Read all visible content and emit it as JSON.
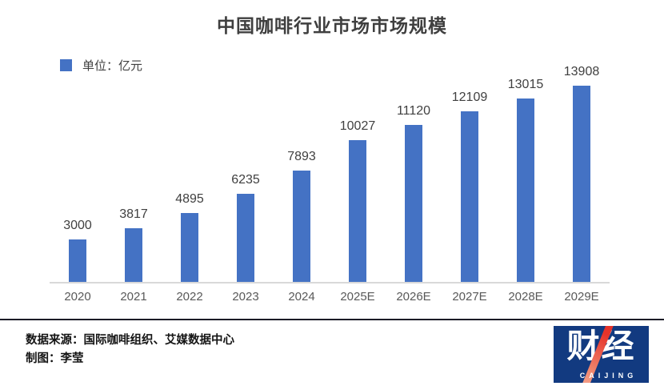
{
  "title": "中国咖啡行业市场市场规模",
  "legend": {
    "label": "单位：亿元",
    "swatch_color": "#4472C4"
  },
  "chart_data": {
    "type": "bar",
    "title": "中国咖啡行业市场市场规模",
    "categories": [
      "2020",
      "2021",
      "2022",
      "2023",
      "2024",
      "2025E",
      "2026E",
      "2027E",
      "2028E",
      "2029E"
    ],
    "values": [
      3000,
      3817,
      4895,
      6235,
      7893,
      10027,
      11120,
      12109,
      13015,
      13908
    ],
    "xlabel": "",
    "ylabel": "亿元",
    "ylim": [
      0,
      14000
    ],
    "bar_color": "#4472C4",
    "axis_line_color": "#D9D9D9",
    "grid": false,
    "data_labels": true,
    "legend_position": "top-left"
  },
  "footer": {
    "source_line": "数据来源：国际咖啡组织、艾媒数据中心",
    "credit_line": "制图：李莹"
  },
  "logo": {
    "text": "财经",
    "subtext": "CAIJING",
    "bg_color": "#123A80",
    "slash_color": "#E6332A"
  }
}
